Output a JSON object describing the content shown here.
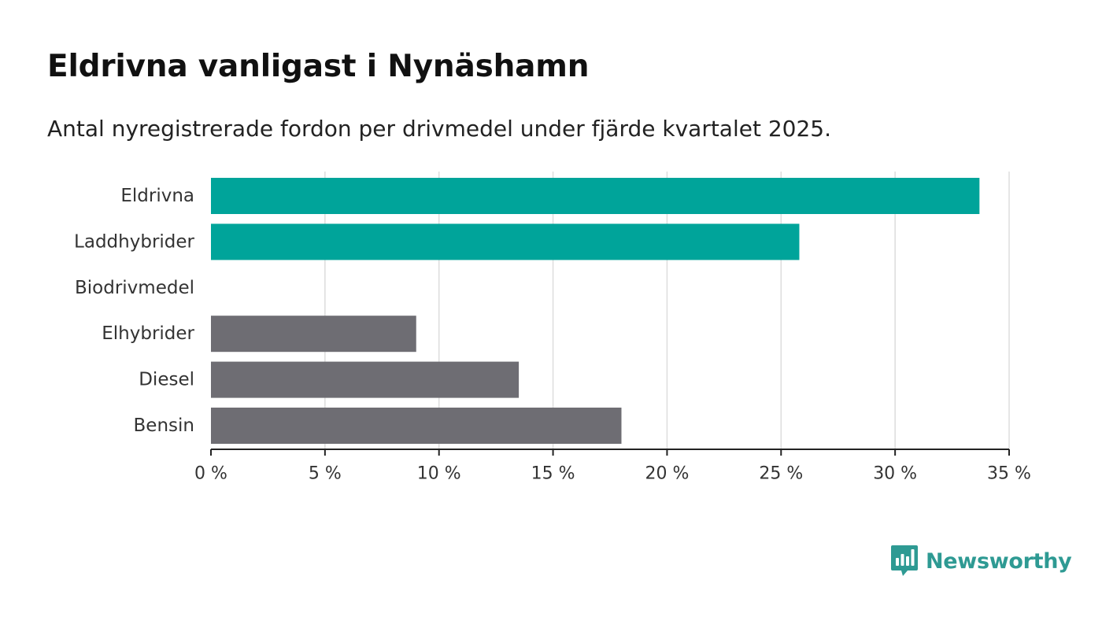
{
  "header": {
    "title": "Eldrivna vanligast i Nynäshamn",
    "subtitle": "Antal nyregistrerade fordon per drivmedel under fjärde kvartalet 2025."
  },
  "chart_data": {
    "type": "bar",
    "orientation": "horizontal",
    "title": "Eldrivna vanligast i Nynäshamn",
    "subtitle": "Antal nyregistrerade fordon per drivmedel under fjärde kvartalet 2025.",
    "xlabel": "",
    "ylabel": "",
    "unit": "%",
    "xlim": [
      0,
      35
    ],
    "ticks": [
      0,
      5,
      10,
      15,
      20,
      25,
      30,
      35
    ],
    "tick_labels": [
      "0 %",
      "5 %",
      "10 %",
      "15 %",
      "20 %",
      "25 %",
      "30 %",
      "35 %"
    ],
    "grid": true,
    "categories": [
      "Eldrivna",
      "Laddhybrider",
      "Biodrivmedel",
      "Elhybrider",
      "Diesel",
      "Bensin"
    ],
    "values": [
      33.7,
      25.8,
      0,
      9.0,
      13.5,
      18.0
    ],
    "groups": [
      "electric",
      "electric",
      "other",
      "other",
      "other",
      "other"
    ],
    "colors": {
      "electric": "#00a49a",
      "other": "#6e6d73",
      "grid": "#dddddd",
      "axis": "#222222",
      "label": "#333333"
    }
  },
  "branding": {
    "name": "Newsworthy",
    "color": "#2e9a93",
    "icon": "bar-chart-speech-bubble-icon"
  }
}
